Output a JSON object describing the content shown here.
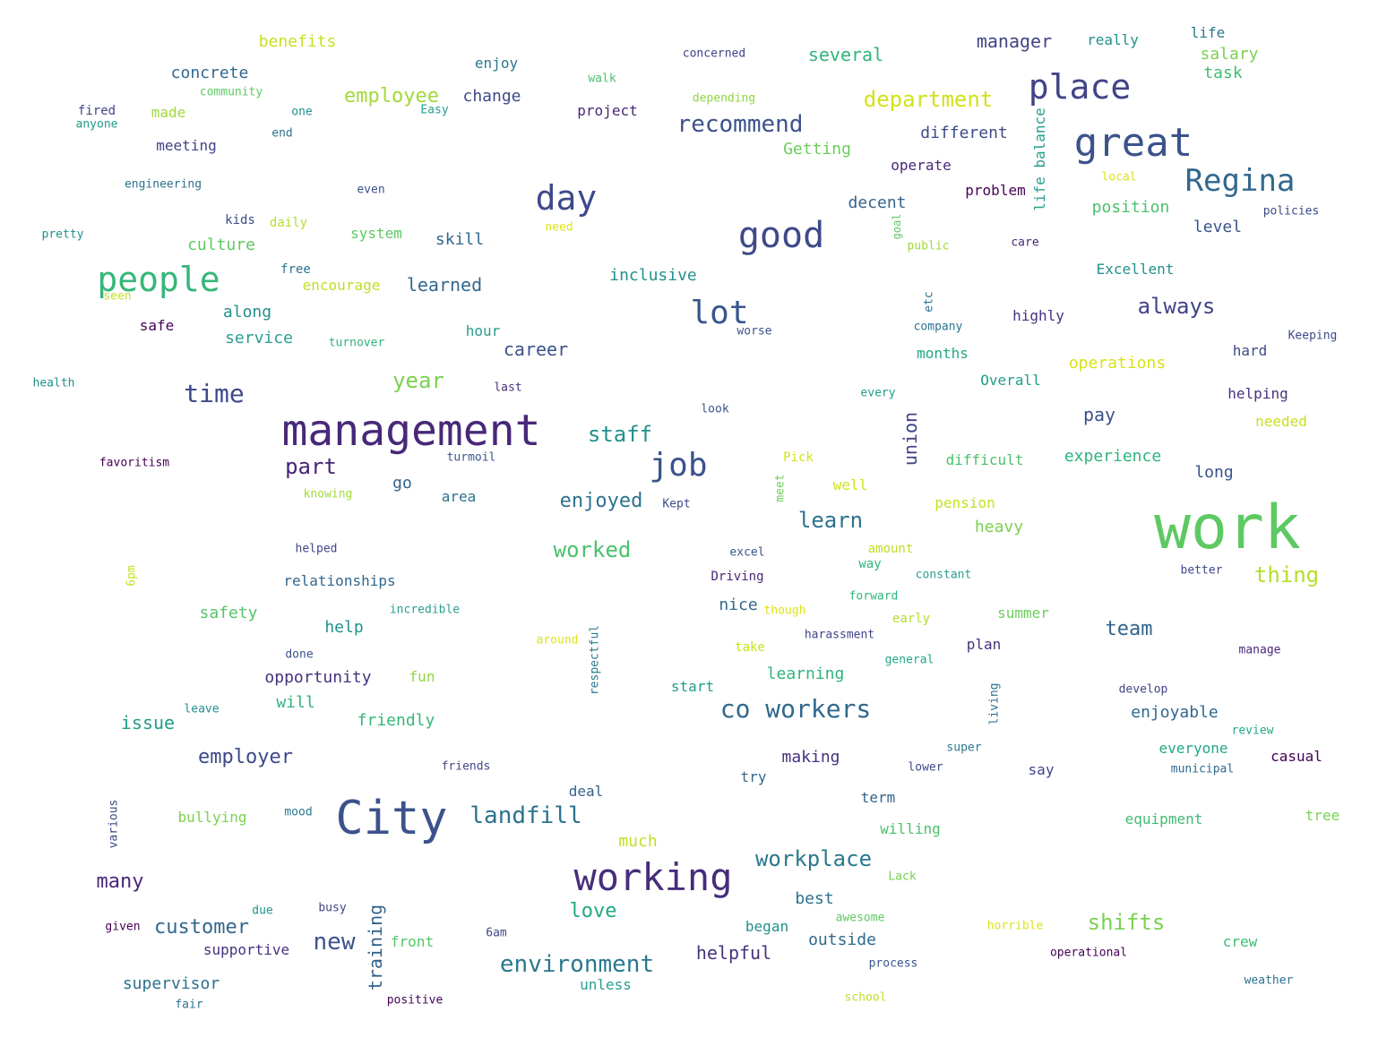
{
  "words": [
    {
      "text": "work",
      "color": "#5ec962"
    },
    {
      "text": "management",
      "color": "#482878"
    },
    {
      "text": "City",
      "color": "#3b528b"
    },
    {
      "text": "working",
      "color": "#472d7b"
    },
    {
      "text": "good",
      "color": "#3e4989"
    },
    {
      "text": "great",
      "color": "#3b528b"
    },
    {
      "text": "people",
      "color": "#35b779"
    },
    {
      "text": "day",
      "color": "#3e4989"
    },
    {
      "text": "place",
      "color": "#414487"
    },
    {
      "text": "job",
      "color": "#3b528b"
    },
    {
      "text": "lot",
      "color": "#39568c"
    },
    {
      "text": "Regina",
      "color": "#31688e"
    },
    {
      "text": "co workers",
      "color": "#31688e"
    },
    {
      "text": "time",
      "color": "#3e4989"
    },
    {
      "text": "environment",
      "color": "#2a788e"
    },
    {
      "text": "department",
      "color": "#d2e21b"
    },
    {
      "text": "landfill",
      "color": "#2c728e"
    },
    {
      "text": "recommend",
      "color": "#3b528b"
    },
    {
      "text": "workplace",
      "color": "#2a788e"
    },
    {
      "text": "always",
      "color": "#414487"
    },
    {
      "text": "staff",
      "color": "#21918c"
    },
    {
      "text": "employer",
      "color": "#3e4989"
    },
    {
      "text": "new",
      "color": "#3b528b"
    },
    {
      "text": "year",
      "color": "#7ad151"
    },
    {
      "text": "part",
      "color": "#482475"
    },
    {
      "text": "learn",
      "color": "#2c728e"
    },
    {
      "text": "thing",
      "color": "#b5de2b"
    },
    {
      "text": "worked",
      "color": "#4ac16d"
    },
    {
      "text": "shifts",
      "color": "#7ad151"
    },
    {
      "text": "enjoyed",
      "color": "#2c728e"
    },
    {
      "text": "customer",
      "color": "#31688e"
    },
    {
      "text": "employee",
      "color": "#a0da39"
    },
    {
      "text": "many",
      "color": "#482878"
    },
    {
      "text": "team",
      "color": "#33638d"
    },
    {
      "text": "love",
      "color": "#22a884"
    },
    {
      "text": "career",
      "color": "#3b528b"
    },
    {
      "text": "issue",
      "color": "#1f9e89"
    },
    {
      "text": "training",
      "color": "#33638d"
    },
    {
      "text": "helpful",
      "color": "#46327e"
    },
    {
      "text": "manager",
      "color": "#414487"
    },
    {
      "text": "several",
      "color": "#2fb47c"
    },
    {
      "text": "learned",
      "color": "#31688e"
    },
    {
      "text": "opportunity",
      "color": "#46327e"
    },
    {
      "text": "inclusive",
      "color": "#21918c"
    },
    {
      "text": "union",
      "color": "#414487"
    },
    {
      "text": "experience",
      "color": "#2fb47c"
    },
    {
      "text": "pay",
      "color": "#3b528b"
    },
    {
      "text": "friendly",
      "color": "#35b779"
    },
    {
      "text": "supervisor",
      "color": "#2c728e"
    },
    {
      "text": "safety",
      "color": "#54c568"
    },
    {
      "text": "learning",
      "color": "#2fb47c"
    },
    {
      "text": "skill",
      "color": "#31688e"
    },
    {
      "text": "culture",
      "color": "#5ec962"
    },
    {
      "text": "outside",
      "color": "#31688e"
    },
    {
      "text": "help",
      "color": "#21918c"
    },
    {
      "text": "making",
      "color": "#46327e"
    },
    {
      "text": "Getting",
      "color": "#6ccd5a"
    },
    {
      "text": "decent",
      "color": "#33638d"
    },
    {
      "text": "change",
      "color": "#3e4989"
    },
    {
      "text": "different",
      "color": "#3e4989"
    },
    {
      "text": "service",
      "color": "#2a9d8f"
    },
    {
      "text": "along",
      "color": "#21918c"
    },
    {
      "text": "benefits",
      "color": "#c8e020"
    },
    {
      "text": "concrete",
      "color": "#31688e"
    },
    {
      "text": "position",
      "color": "#4ac16d"
    },
    {
      "text": "level",
      "color": "#3b528b"
    },
    {
      "text": "operations",
      "color": "#d8e219"
    },
    {
      "text": "enjoyable",
      "color": "#31688e"
    },
    {
      "text": "relationships",
      "color": "#31688e"
    },
    {
      "text": "summer",
      "color": "#6ccd5a"
    },
    {
      "text": "heavy",
      "color": "#7ad151"
    },
    {
      "text": "months",
      "color": "#22a884"
    },
    {
      "text": "long",
      "color": "#3b528b"
    },
    {
      "text": "best",
      "color": "#2c728e"
    },
    {
      "text": "start",
      "color": "#1f9e89"
    },
    {
      "text": "nice",
      "color": "#31688e"
    },
    {
      "text": "much",
      "color": "#c0df25"
    },
    {
      "text": "will",
      "color": "#2fb47c"
    },
    {
      "text": "supportive",
      "color": "#46327e"
    },
    {
      "text": "safe",
      "color": "#440154"
    },
    {
      "text": "meeting",
      "color": "#414487"
    },
    {
      "text": "highly",
      "color": "#46327e"
    },
    {
      "text": "plan",
      "color": "#46327e"
    },
    {
      "text": "salary",
      "color": "#7ad151"
    },
    {
      "text": "task",
      "color": "#3fbc73"
    },
    {
      "text": "really",
      "color": "#21918c"
    },
    {
      "text": "life",
      "color": "#2a788e"
    },
    {
      "text": "life balance",
      "color": "#2a9d8f"
    },
    {
      "text": "Excellent",
      "color": "#21918c"
    },
    {
      "text": "Overall",
      "color": "#1f9e89"
    },
    {
      "text": "difficult",
      "color": "#4ac16d"
    },
    {
      "text": "operate",
      "color": "#482878"
    },
    {
      "text": "problem",
      "color": "#440154"
    },
    {
      "text": "project",
      "color": "#482878"
    },
    {
      "text": "hour",
      "color": "#2a9d8f"
    },
    {
      "text": "go",
      "color": "#33638d"
    },
    {
      "text": "area",
      "color": "#2c728e"
    },
    {
      "text": "encourage",
      "color": "#bddf26"
    },
    {
      "text": "equipment",
      "color": "#3fbc73"
    },
    {
      "text": "everyone",
      "color": "#22a884"
    },
    {
      "text": "casual",
      "color": "#440154"
    },
    {
      "text": "say",
      "color": "#414487"
    },
    {
      "text": "try",
      "color": "#31688e"
    },
    {
      "text": "deal",
      "color": "#33638d"
    },
    {
      "text": "front",
      "color": "#54c568"
    },
    {
      "text": "began",
      "color": "#21918c"
    },
    {
      "text": "term",
      "color": "#33638d"
    },
    {
      "text": "willing",
      "color": "#4ac16d"
    },
    {
      "text": "pension",
      "color": "#c8e020"
    },
    {
      "text": "helping",
      "color": "#46327e"
    },
    {
      "text": "needed",
      "color": "#c8e020"
    },
    {
      "text": "hard",
      "color": "#3e4989"
    },
    {
      "text": "tree",
      "color": "#7ad151"
    },
    {
      "text": "crew",
      "color": "#3fbc73"
    },
    {
      "text": "enjoy",
      "color": "#2a788e"
    },
    {
      "text": "bullying",
      "color": "#7ad151"
    },
    {
      "text": "well",
      "color": "#d2e21b"
    },
    {
      "text": "unless",
      "color": "#2a9d8f"
    },
    {
      "text": "fun",
      "color": "#8fd744"
    },
    {
      "text": "made",
      "color": "#a0da39"
    },
    {
      "text": "kids",
      "color": "#3e4989"
    },
    {
      "text": "system",
      "color": "#5ec962"
    },
    {
      "text": "free",
      "color": "#2c728e"
    },
    {
      "text": "engineering",
      "color": "#2c728e"
    },
    {
      "text": "pretty",
      "color": "#21918c"
    },
    {
      "text": "daily",
      "color": "#b5de2b"
    },
    {
      "text": "need",
      "color": "#dde318"
    },
    {
      "text": "even",
      "color": "#3b528b"
    },
    {
      "text": "fired",
      "color": "#414487"
    },
    {
      "text": "anyone",
      "color": "#1f9e89"
    },
    {
      "text": "community",
      "color": "#5ec962"
    },
    {
      "text": "one",
      "color": "#21918c"
    },
    {
      "text": "end",
      "color": "#2c728e"
    },
    {
      "text": "Easy",
      "color": "#2a9d8f"
    },
    {
      "text": "walk",
      "color": "#4ac16d"
    },
    {
      "text": "depending",
      "color": "#8fd744"
    },
    {
      "text": "concerned",
      "color": "#414487"
    },
    {
      "text": "goal",
      "color": "#5ec962"
    },
    {
      "text": "public",
      "color": "#a0da39"
    },
    {
      "text": "local",
      "color": "#dde318"
    },
    {
      "text": "care",
      "color": "#482878"
    },
    {
      "text": "policies",
      "color": "#3e4989"
    },
    {
      "text": "etc",
      "color": "#2c728e"
    },
    {
      "text": "company",
      "color": "#2c728e"
    },
    {
      "text": "worse",
      "color": "#3b528b"
    },
    {
      "text": "Keeping",
      "color": "#3e4989"
    },
    {
      "text": "every",
      "color": "#1f9e89"
    },
    {
      "text": "look",
      "color": "#3b528b"
    },
    {
      "text": "last",
      "color": "#46327e"
    },
    {
      "text": "turmoil",
      "color": "#39568c"
    },
    {
      "text": "Pick",
      "color": "#d2e21b"
    },
    {
      "text": "meet",
      "color": "#6ccd5a"
    },
    {
      "text": "Kept",
      "color": "#3e4989"
    },
    {
      "text": "knowing",
      "color": "#a0da39"
    },
    {
      "text": "favoritism",
      "color": "#440154"
    },
    {
      "text": "health",
      "color": "#21918c"
    },
    {
      "text": "seen",
      "color": "#c2df23"
    },
    {
      "text": "turnover",
      "color": "#2fb47c"
    },
    {
      "text": "helped",
      "color": "#414487"
    },
    {
      "text": "6pm",
      "color": "#c8e020"
    },
    {
      "text": "excel",
      "color": "#39568c"
    },
    {
      "text": "Driving",
      "color": "#482878"
    },
    {
      "text": "amount",
      "color": "#bddf26"
    },
    {
      "text": "way",
      "color": "#2fb47c"
    },
    {
      "text": "constant",
      "color": "#2a9d8f"
    },
    {
      "text": "better",
      "color": "#3e4989"
    },
    {
      "text": "forward",
      "color": "#2fb47c"
    },
    {
      "text": "though",
      "color": "#dde318"
    },
    {
      "text": "early",
      "color": "#b5de2b"
    },
    {
      "text": "harassment",
      "color": "#414487"
    },
    {
      "text": "general",
      "color": "#22a884"
    },
    {
      "text": "incredible",
      "color": "#2a9d8f"
    },
    {
      "text": "respectful",
      "color": "#2a788e"
    },
    {
      "text": "around",
      "color": "#dde318"
    },
    {
      "text": "take",
      "color": "#c8e020"
    },
    {
      "text": "manage",
      "color": "#482878"
    },
    {
      "text": "develop",
      "color": "#414487"
    },
    {
      "text": "living",
      "color": "#2c728e"
    },
    {
      "text": "review",
      "color": "#22a884"
    },
    {
      "text": "done",
      "color": "#3b528b"
    },
    {
      "text": "leave",
      "color": "#21918c"
    },
    {
      "text": "friends",
      "color": "#414487"
    },
    {
      "text": "super",
      "color": "#2a788e"
    },
    {
      "text": "lower",
      "color": "#3e4989"
    },
    {
      "text": "municipal",
      "color": "#31688e"
    },
    {
      "text": "various",
      "color": "#3e4989"
    },
    {
      "text": "mood",
      "color": "#2a788e"
    },
    {
      "text": "Lack",
      "color": "#7ad151"
    },
    {
      "text": "due",
      "color": "#21918c"
    },
    {
      "text": "busy",
      "color": "#414487"
    },
    {
      "text": "6am",
      "color": "#414487"
    },
    {
      "text": "given",
      "color": "#440154"
    },
    {
      "text": "awesome",
      "color": "#5ec962"
    },
    {
      "text": "horrible",
      "color": "#dde318"
    },
    {
      "text": "operational",
      "color": "#440154"
    },
    {
      "text": "process",
      "color": "#39568c"
    },
    {
      "text": "positive",
      "color": "#440154"
    },
    {
      "text": "fair",
      "color": "#2c728e"
    },
    {
      "text": "school",
      "color": "#bddf26"
    },
    {
      "text": "weather",
      "color": "#2c728e"
    }
  ]
}
